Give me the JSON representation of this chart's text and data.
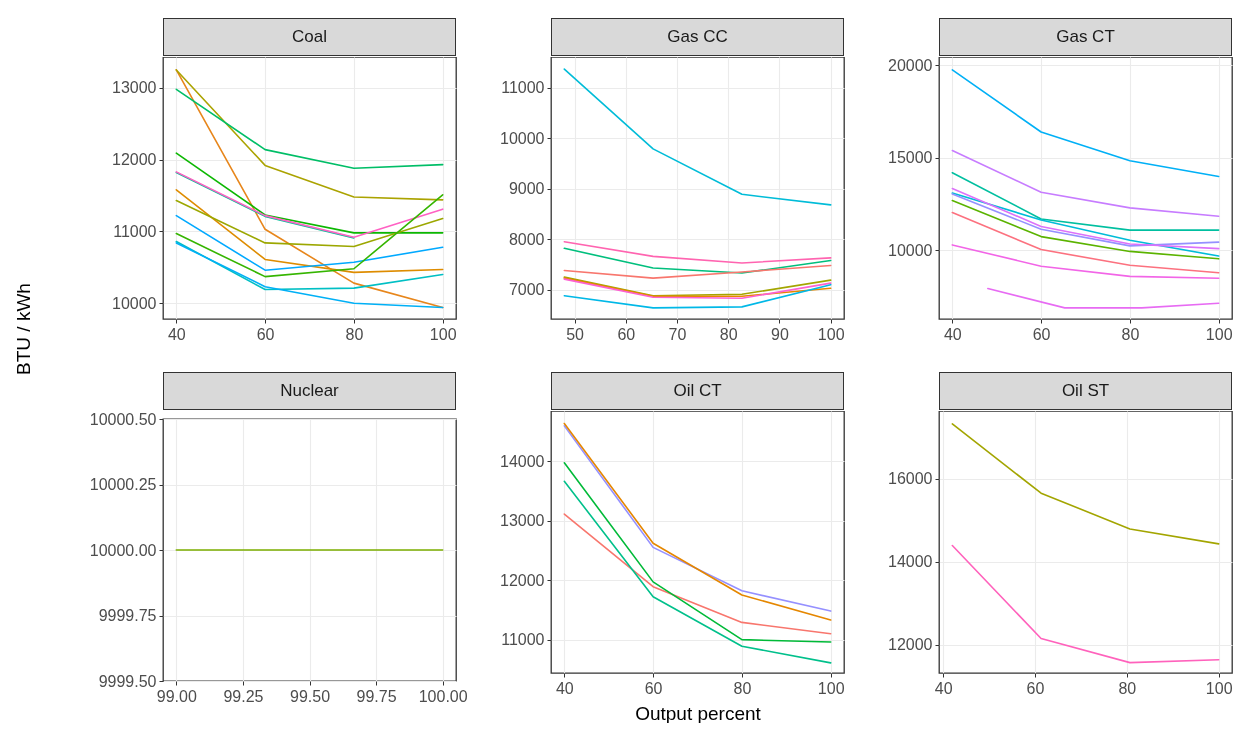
{
  "chart_data": [
    {
      "type": "line",
      "title": "Coal",
      "ylabel": "BTU / kWh",
      "x": [
        40,
        60,
        80,
        100
      ],
      "xlim": [
        37,
        103
      ],
      "ylim": [
        9780,
        13430
      ],
      "xticks": [
        40,
        60,
        80,
        100
      ],
      "yticks": [
        10000,
        11000,
        12000,
        13000
      ],
      "grid": true,
      "series": [
        {
          "color": "#e7861b",
          "values": [
            13250,
            11030,
            10280,
            9940
          ]
        },
        {
          "color": "#aba300",
          "values": [
            13250,
            11920,
            11480,
            11440
          ]
        },
        {
          "color": "#00be67",
          "values": [
            12980,
            12140,
            11880,
            11930
          ]
        },
        {
          "color": "#0cb702",
          "values": [
            12090,
            11230,
            10980,
            10980
          ]
        },
        {
          "color": "#00c19a",
          "values": [
            11820,
            11210,
            10910,
            null
          ]
        },
        {
          "color": "#ff61c3",
          "values": [
            11830,
            11220,
            10920,
            11310
          ]
        },
        {
          "color": "#de8c00",
          "values": [
            11580,
            10610,
            10430,
            10470
          ]
        },
        {
          "color": "#9ca700",
          "values": [
            11430,
            10840,
            10790,
            11180
          ]
        },
        {
          "color": "#00a9ff",
          "values": [
            11220,
            10460,
            10570,
            10780
          ]
        },
        {
          "color": "#35b500",
          "values": [
            10970,
            10370,
            10480,
            11510
          ]
        },
        {
          "color": "#00bfc4",
          "values": [
            10860,
            10190,
            10210,
            10400
          ]
        },
        {
          "color": "#00b0f6",
          "values": [
            10840,
            10230,
            10000,
            9940
          ]
        }
      ]
    },
    {
      "type": "line",
      "title": "Gas CC",
      "x": [
        48,
        65.33,
        82.67,
        100
      ],
      "xlim": [
        45.4,
        102.6
      ],
      "ylim": [
        6420,
        11610
      ],
      "xticks": [
        50,
        60,
        70,
        80,
        90,
        100
      ],
      "yticks": [
        7000,
        8000,
        9000,
        10000,
        11000
      ],
      "grid": true,
      "series": [
        {
          "color": "#00bcd8",
          "values": [
            11370,
            9790,
            8890,
            8680
          ]
        },
        {
          "color": "#ff64b0",
          "values": [
            7950,
            7660,
            7530,
            7630
          ]
        },
        {
          "color": "#00bf7d",
          "values": [
            7820,
            7430,
            7330,
            7580
          ]
        },
        {
          "color": "#f8766d",
          "values": [
            7380,
            7230,
            7350,
            7480
          ]
        },
        {
          "color": "#a3a500",
          "values": [
            7250,
            6880,
            6910,
            7190
          ]
        },
        {
          "color": "#e58700",
          "values": [
            7230,
            6870,
            6870,
            7030
          ]
        },
        {
          "color": "#fd61d1",
          "values": [
            7210,
            6850,
            6830,
            7130
          ]
        },
        {
          "color": "#00b8e7",
          "values": [
            6880,
            6640,
            6660,
            7100
          ]
        }
      ]
    },
    {
      "type": "line",
      "title": "Gas CT",
      "x": [
        40,
        60,
        80,
        100
      ],
      "xlim": [
        37,
        103
      ],
      "ylim": [
        6300,
        20450
      ],
      "xticks": [
        40,
        60,
        80,
        100
      ],
      "yticks": [
        10000,
        15000,
        20000
      ],
      "grid": true,
      "series": [
        {
          "color": "#00b0f6",
          "values": [
            19750,
            16400,
            14850,
            14000
          ]
        },
        {
          "color": "#c77cff",
          "values": [
            15400,
            13150,
            12300,
            11850
          ]
        },
        {
          "color": "#00bfa0",
          "values": [
            14200,
            11700,
            11100,
            11100
          ]
        },
        {
          "color": "#00bcd8",
          "values": [
            13100,
            11650,
            10550,
            9700
          ]
        },
        {
          "color": "#9590ff",
          "values": [
            13050,
            11150,
            10250,
            10450
          ]
        },
        {
          "color": "#dc71fa",
          "values": [
            13350,
            11300,
            10350,
            10100
          ]
        },
        {
          "color": "#5bb300",
          "values": [
            12700,
            10750,
            9950,
            9550
          ]
        },
        {
          "color": "#fc717f",
          "values": [
            12050,
            10050,
            9200,
            8800
          ]
        },
        {
          "color": "#f265e7",
          "values": [
            10300,
            9150,
            8600,
            8500
          ]
        },
        {
          "color": "#e76bf3",
          "x": [
            48,
            65.33,
            82.67,
            100
          ],
          "values": [
            7950,
            6900,
            6900,
            7150
          ]
        }
      ]
    },
    {
      "type": "line",
      "title": "Nuclear",
      "x": [
        99,
        100
      ],
      "xlim": [
        98.95,
        100.05
      ],
      "ylim": [
        9999.5,
        10000.5
      ],
      "xticks": [
        {
          "value": 99,
          "label": "99.00"
        },
        {
          "value": 99.25,
          "label": "99.25"
        },
        {
          "value": 99.5,
          "label": "99.50"
        },
        {
          "value": 99.75,
          "label": "99.75"
        },
        {
          "value": 100,
          "label": "100.00"
        }
      ],
      "yticks": [
        {
          "value": 9999.5,
          "label": "9999.50"
        },
        {
          "value": 9999.75,
          "label": "9999.75"
        },
        {
          "value": 10000,
          "label": "10000.00"
        },
        {
          "value": 10000.25,
          "label": "10000.25"
        },
        {
          "value": 10000.5,
          "label": "10000.50"
        }
      ],
      "grid": true,
      "series": [
        {
          "color": "#7cae00",
          "values": [
            10000,
            10000
          ]
        }
      ]
    },
    {
      "type": "line",
      "title": "Oil CT",
      "xlabel": "Output percent",
      "x": [
        40,
        60,
        80,
        100
      ],
      "xlim": [
        37,
        103
      ],
      "ylim": [
        10440,
        14840
      ],
      "xticks": [
        40,
        60,
        80,
        100
      ],
      "yticks": [
        11000,
        12000,
        13000,
        14000
      ],
      "grid": true,
      "series": [
        {
          "color": "#f8766d",
          "values": [
            13110,
            11890,
            11290,
            11100
          ]
        },
        {
          "color": "#00c08b",
          "values": [
            13660,
            11720,
            10890,
            10610
          ]
        },
        {
          "color": "#00ba38",
          "values": [
            13970,
            11970,
            11000,
            10960
          ]
        },
        {
          "color": "#9590ff",
          "values": [
            14590,
            12550,
            11820,
            11480
          ]
        },
        {
          "color": "#e58700",
          "values": [
            14630,
            12620,
            11750,
            11330
          ]
        }
      ]
    },
    {
      "type": "line",
      "title": "Oil ST",
      "x": [
        42,
        61.33,
        80.67,
        100
      ],
      "xlim": [
        39.1,
        102.9
      ],
      "ylim": [
        11320,
        17630
      ],
      "xticks": [
        40,
        60,
        80,
        100
      ],
      "yticks": [
        12000,
        14000,
        16000
      ],
      "grid": true,
      "series": [
        {
          "color": "#a3a500",
          "values": [
            17320,
            15650,
            14790,
            14430
          ]
        },
        {
          "color": "#ff62bc",
          "values": [
            14390,
            12150,
            11570,
            11640
          ]
        }
      ]
    }
  ]
}
